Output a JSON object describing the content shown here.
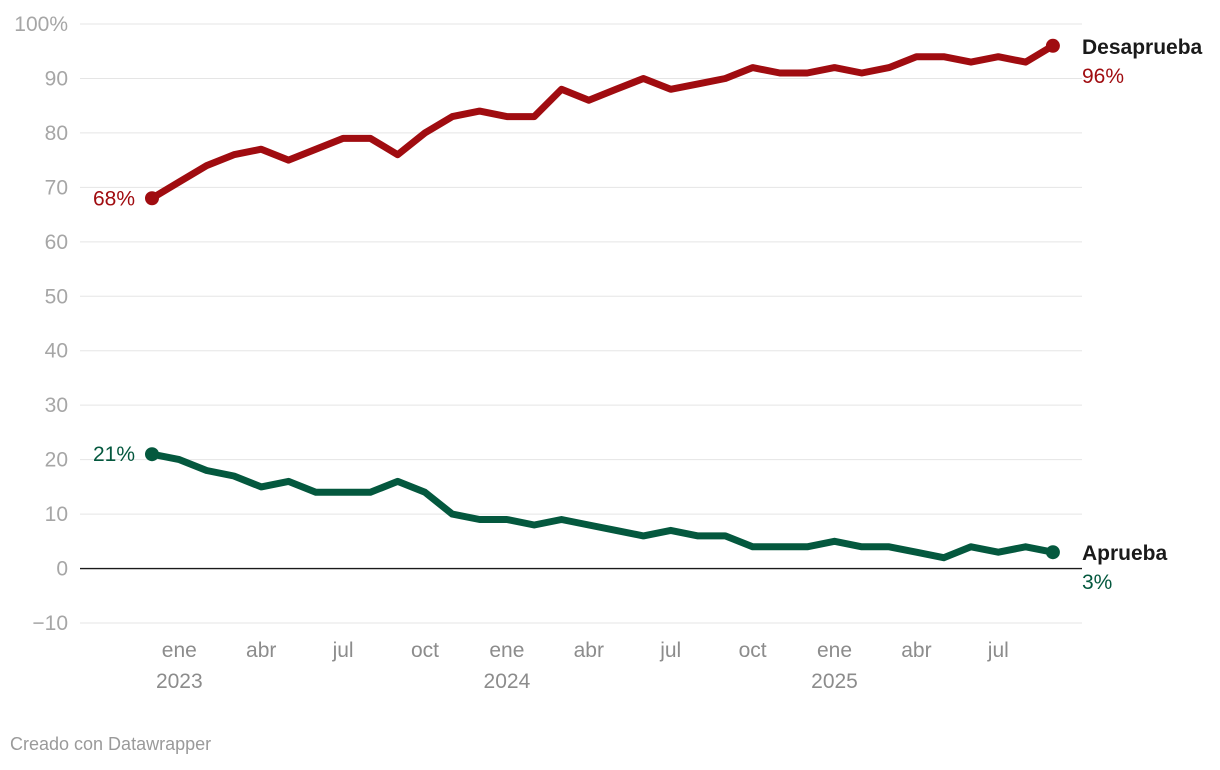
{
  "chart_data": {
    "type": "line",
    "x_months": [
      "2022-12",
      "2023-01",
      "2023-02",
      "2023-03",
      "2023-04",
      "2023-05",
      "2023-06",
      "2023-07",
      "2023-08",
      "2023-09",
      "2023-10",
      "2023-11",
      "2023-12",
      "2024-01",
      "2024-02",
      "2024-03",
      "2024-04",
      "2024-05",
      "2024-06",
      "2024-07",
      "2024-08",
      "2024-09",
      "2024-10",
      "2024-11",
      "2024-12",
      "2025-01",
      "2025-02",
      "2025-03",
      "2025-04",
      "2025-05",
      "2025-06",
      "2025-07",
      "2025-08",
      "2025-09"
    ],
    "series": [
      {
        "name": "Desaprueba",
        "color": "#a00c10",
        "values": [
          68,
          71,
          74,
          76,
          77,
          75,
          77,
          79,
          79,
          76,
          80,
          83,
          84,
          83,
          83,
          88,
          86,
          88,
          90,
          88,
          89,
          90,
          92,
          91,
          91,
          92,
          91,
          92,
          94,
          94,
          93,
          94,
          93,
          96
        ],
        "start_label": "68%",
        "end_label": "96%"
      },
      {
        "name": "Aprueba",
        "color": "#04583e",
        "values": [
          21,
          20,
          18,
          17,
          15,
          16,
          14,
          14,
          14,
          16,
          14,
          10,
          9,
          9,
          8,
          9,
          8,
          7,
          6,
          7,
          6,
          6,
          4,
          4,
          4,
          5,
          4,
          4,
          3,
          2,
          4,
          3,
          4,
          3
        ],
        "start_label": "21%",
        "end_label": "3%"
      }
    ],
    "ylim": [
      -10,
      100
    ],
    "y_ticks": [
      {
        "value": 100,
        "label": "100%"
      },
      {
        "value": 90,
        "label": "90"
      },
      {
        "value": 80,
        "label": "80"
      },
      {
        "value": 70,
        "label": "70"
      },
      {
        "value": 60,
        "label": "60"
      },
      {
        "value": 50,
        "label": "50"
      },
      {
        "value": 40,
        "label": "40"
      },
      {
        "value": 30,
        "label": "30"
      },
      {
        "value": 20,
        "label": "20"
      },
      {
        "value": 10,
        "label": "10"
      },
      {
        "value": 0,
        "label": "0"
      },
      {
        "value": -10,
        "label": "−10"
      }
    ],
    "x_ticks": [
      {
        "index": 1,
        "label": "ene",
        "year": "2023"
      },
      {
        "index": 4,
        "label": "abr",
        "year": ""
      },
      {
        "index": 7,
        "label": "jul",
        "year": ""
      },
      {
        "index": 10,
        "label": "oct",
        "year": ""
      },
      {
        "index": 13,
        "label": "ene",
        "year": "2024"
      },
      {
        "index": 16,
        "label": "abr",
        "year": ""
      },
      {
        "index": 19,
        "label": "jul",
        "year": ""
      },
      {
        "index": 22,
        "label": "oct",
        "year": ""
      },
      {
        "index": 25,
        "label": "ene",
        "year": "2025"
      },
      {
        "index": 28,
        "label": "abr",
        "year": ""
      },
      {
        "index": 31,
        "label": "jul",
        "year": ""
      }
    ],
    "title": "",
    "xlabel": "",
    "ylabel": ""
  },
  "footer": {
    "credit": "Creado con Datawrapper"
  }
}
